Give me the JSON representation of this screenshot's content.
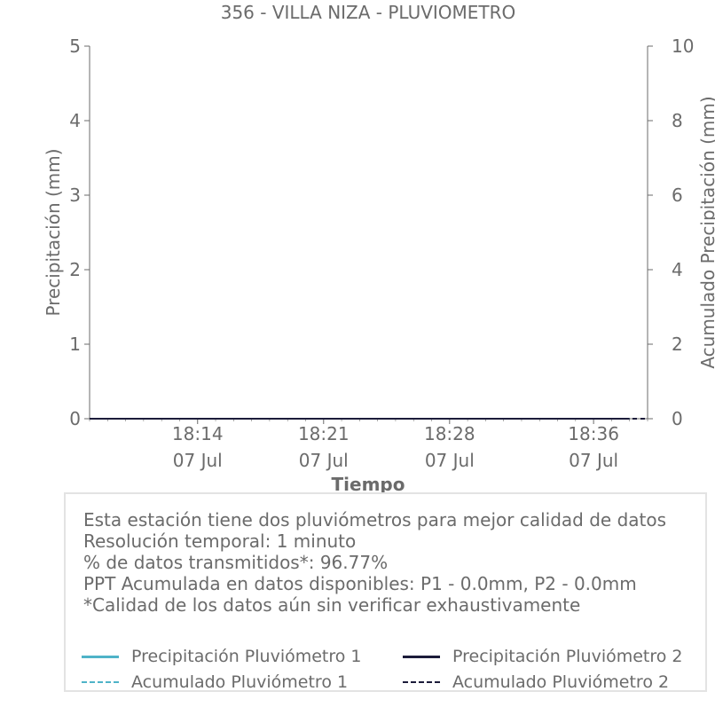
{
  "chart_data": {
    "type": "line",
    "title": "356 - VILLA NIZA - PLUVIOMETRO",
    "xlabel": "Tiempo",
    "ylabel": "Precipitación (mm)",
    "y2label": "Acumulado Precipitación (mm)",
    "ylim": [
      0,
      5
    ],
    "y2lim": [
      0,
      10
    ],
    "yticks": [
      "0",
      "1",
      "2",
      "3",
      "4",
      "5"
    ],
    "y2ticks": [
      "0",
      "2",
      "4",
      "6",
      "8",
      "10"
    ],
    "xlim": [
      "18:08",
      "18:39"
    ],
    "xticks": [
      {
        "time": "18:14",
        "date": "07 Jul"
      },
      {
        "time": "18:21",
        "date": "07 Jul"
      },
      {
        "time": "18:28",
        "date": "07 Jul"
      },
      {
        "time": "18:36",
        "date": "07 Jul"
      }
    ],
    "series": [
      {
        "name": "Precipitación Pluviómetro 1",
        "axis": "left",
        "color": "#4fb3c8",
        "style": "solid",
        "x": [
          "18:08",
          "18:38"
        ],
        "values": [
          0,
          0
        ]
      },
      {
        "name": "Precipitación Pluviómetro 2",
        "axis": "left",
        "color": "#1c1c3a",
        "style": "solid",
        "x": [
          "18:08",
          "18:38"
        ],
        "values": [
          0,
          0
        ]
      },
      {
        "name": "Acumulado Pluviómetro 1",
        "axis": "right",
        "color": "#4fb3c8",
        "style": "dashed",
        "x": [
          "18:08",
          "18:39"
        ],
        "values": [
          0,
          0
        ]
      },
      {
        "name": "Acumulado Pluviómetro 2",
        "axis": "right",
        "color": "#1c1c3a",
        "style": "dashed",
        "x": [
          "18:08",
          "18:39"
        ],
        "values": [
          0,
          0
        ]
      }
    ]
  },
  "info": {
    "lines": [
      "Esta estación tiene dos pluviómetros para mejor calidad de datos",
      "Resolución temporal: 1 minuto",
      "% de datos transmitidos*: 96.77%",
      "PPT Acumulada en datos disponibles: P1 - 0.0mm, P2 - 0.0mm",
      "*Calidad de los datos aún sin verificar exhaustivamente"
    ]
  }
}
